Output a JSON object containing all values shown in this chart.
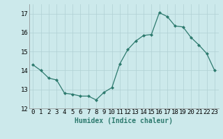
{
  "x": [
    0,
    1,
    2,
    3,
    4,
    5,
    6,
    7,
    8,
    9,
    10,
    11,
    12,
    13,
    14,
    15,
    16,
    17,
    18,
    19,
    20,
    21,
    22,
    23
  ],
  "y": [
    14.3,
    14.0,
    13.6,
    13.5,
    12.8,
    12.75,
    12.65,
    12.65,
    12.45,
    12.85,
    13.1,
    14.35,
    15.1,
    15.55,
    15.85,
    15.9,
    17.05,
    16.85,
    16.35,
    16.3,
    15.75,
    15.35,
    14.9,
    14.0
  ],
  "xlabel": "Humidex (Indice chaleur)",
  "ylim": [
    12,
    17.5
  ],
  "yticks": [
    12,
    13,
    14,
    15,
    16,
    17
  ],
  "bg_color": "#cce9eb",
  "grid_color": "#b0d0d3",
  "line_color": "#2d7a6e",
  "marker_color": "#2d7a6e",
  "xlabel_fontsize": 7,
  "tick_fontsize": 6.5
}
